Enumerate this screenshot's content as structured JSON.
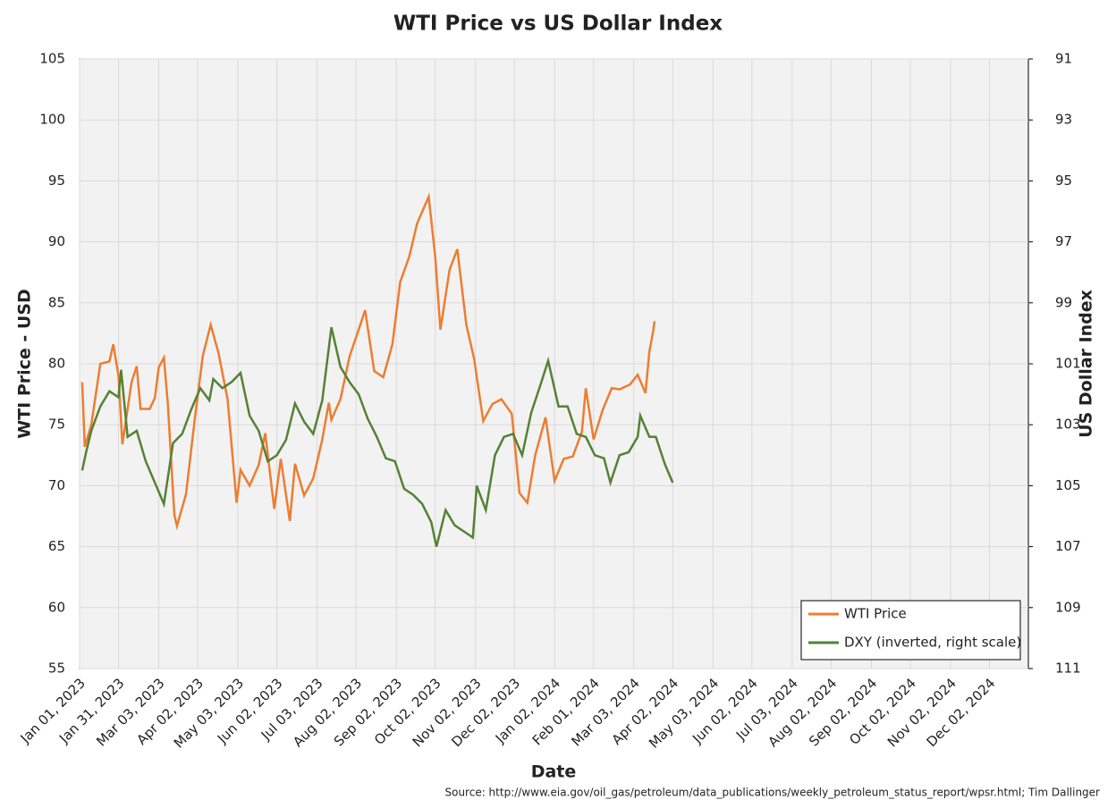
{
  "chart_data": {
    "type": "line",
    "title": "WTI Price vs US Dollar Index",
    "xlabel": "Date",
    "ylabel": "WTI Price - USD",
    "y2label": "US Dollar Index",
    "source": "Source: http://www.eia.gov/oil_gas/petroleum/data_publications/weekly_petroleum_status_report/wpsr.html; Tim Dallinger",
    "xlim": [
      "2023-01-01",
      "2025-01-01"
    ],
    "xticks": [
      {
        "value": "2023-01-01",
        "label": "Jan 01, 2023"
      },
      {
        "value": "2023-01-31",
        "label": "Jan 31, 2023"
      },
      {
        "value": "2023-03-03",
        "label": "Mar 03, 2023"
      },
      {
        "value": "2023-04-02",
        "label": "Apr 02, 2023"
      },
      {
        "value": "2023-05-03",
        "label": "May 03, 2023"
      },
      {
        "value": "2023-06-02",
        "label": "Jun 02, 2023"
      },
      {
        "value": "2023-07-03",
        "label": "Jul 03, 2023"
      },
      {
        "value": "2023-08-02",
        "label": "Aug 02, 2023"
      },
      {
        "value": "2023-09-02",
        "label": "Sep 02, 2023"
      },
      {
        "value": "2023-10-02",
        "label": "Oct 02, 2023"
      },
      {
        "value": "2023-11-02",
        "label": "Nov 02, 2023"
      },
      {
        "value": "2023-12-02",
        "label": "Dec 02, 2023"
      },
      {
        "value": "2024-01-02",
        "label": "Jan 02, 2024"
      },
      {
        "value": "2024-02-01",
        "label": "Feb 01, 2024"
      },
      {
        "value": "2024-03-03",
        "label": "Mar 03, 2024"
      },
      {
        "value": "2024-04-02",
        "label": "Apr 02, 2024"
      },
      {
        "value": "2024-05-03",
        "label": "May 03, 2024"
      },
      {
        "value": "2024-06-02",
        "label": "Jun 02, 2024"
      },
      {
        "value": "2024-07-03",
        "label": "Jul 03, 2024"
      },
      {
        "value": "2024-08-02",
        "label": "Aug 02, 2024"
      },
      {
        "value": "2024-09-02",
        "label": "Sep 02, 2024"
      },
      {
        "value": "2024-10-02",
        "label": "Oct 02, 2024"
      },
      {
        "value": "2024-11-02",
        "label": "Nov 02, 2024"
      },
      {
        "value": "2024-12-02",
        "label": "Dec 02, 2024"
      }
    ],
    "ylim": [
      55,
      105
    ],
    "yticks": [
      55,
      60,
      65,
      70,
      75,
      80,
      85,
      90,
      95,
      100,
      105
    ],
    "y2lim": [
      111,
      91
    ],
    "y2ticks": [
      91,
      93,
      95,
      97,
      99,
      101,
      103,
      105,
      107,
      109,
      111
    ],
    "grid": true,
    "legend": "lower right",
    "series": [
      {
        "name": "WTI Price",
        "color": "#ed7d31",
        "x": [
          "2023-01-03",
          "2023-01-05",
          "2023-01-10",
          "2023-01-17",
          "2023-01-24",
          "2023-01-27",
          "2023-01-31",
          "2023-02-03",
          "2023-02-10",
          "2023-02-14",
          "2023-02-17",
          "2023-02-24",
          "2023-02-28",
          "2023-03-03",
          "2023-03-07",
          "2023-03-10",
          "2023-03-15",
          "2023-03-17",
          "2023-03-24",
          "2023-03-31",
          "2023-04-06",
          "2023-04-12",
          "2023-04-18",
          "2023-04-25",
          "2023-05-02",
          "2023-05-05",
          "2023-05-12",
          "2023-05-19",
          "2023-05-24",
          "2023-05-31",
          "2023-06-05",
          "2023-06-12",
          "2023-06-16",
          "2023-06-23",
          "2023-06-30",
          "2023-07-07",
          "2023-07-12",
          "2023-07-14",
          "2023-07-21",
          "2023-07-28",
          "2023-08-04",
          "2023-08-09",
          "2023-08-16",
          "2023-08-23",
          "2023-08-30",
          "2023-09-05",
          "2023-09-12",
          "2023-09-18",
          "2023-09-27",
          "2023-10-02",
          "2023-10-06",
          "2023-10-13",
          "2023-10-19",
          "2023-10-26",
          "2023-11-01",
          "2023-11-08",
          "2023-11-15",
          "2023-11-22",
          "2023-11-30",
          "2023-12-06",
          "2023-12-12",
          "2023-12-18",
          "2023-12-26",
          "2024-01-02",
          "2024-01-09",
          "2024-01-16",
          "2024-01-23",
          "2024-01-26",
          "2024-02-01",
          "2024-02-08",
          "2024-02-15",
          "2024-02-21",
          "2024-02-29",
          "2024-03-06",
          "2024-03-12",
          "2024-03-15",
          "2024-03-18",
          "2024-03-19"
        ],
        "values": [
          78.5,
          73.2,
          75,
          80,
          80.2,
          81.6,
          79,
          73.4,
          78.5,
          79.8,
          76.3,
          76.3,
          77.2,
          79.7,
          80.5,
          76.7,
          67.6,
          66.7,
          69.3,
          75.7,
          80.7,
          83.2,
          80.9,
          77.1,
          68.6,
          71.3,
          70,
          71.7,
          74.3,
          68.1,
          72.2,
          67.1,
          71.8,
          69.2,
          70.6,
          73.8,
          76.8,
          75.4,
          77.1,
          80.6,
          82.8,
          84.4,
          79.4,
          78.9,
          81.6,
          86.7,
          88.8,
          91.5,
          93.7,
          88.8,
          82.8,
          87.7,
          89.4,
          83.2,
          80.4,
          75.3,
          76.7,
          77.1,
          75.9,
          69.4,
          68.6,
          72.5,
          75.6,
          70.4,
          72.2,
          72.4,
          74.4,
          78,
          73.8,
          76.2,
          78,
          77.9,
          78.3,
          79.1,
          77.6,
          81,
          82.7,
          83.5
        ]
      },
      {
        "name": "DXY (inverted, right scale)",
        "color": "#548235",
        "axis": "y2",
        "x": [
          "2023-01-03",
          "2023-01-06",
          "2023-01-10",
          "2023-01-17",
          "2023-01-24",
          "2023-01-31",
          "2023-02-02",
          "2023-02-07",
          "2023-02-14",
          "2023-02-21",
          "2023-02-28",
          "2023-03-07",
          "2023-03-14",
          "2023-03-21",
          "2023-03-28",
          "2023-04-04",
          "2023-04-11",
          "2023-04-14",
          "2023-04-21",
          "2023-04-28",
          "2023-05-05",
          "2023-05-12",
          "2023-05-19",
          "2023-05-26",
          "2023-06-02",
          "2023-06-09",
          "2023-06-16",
          "2023-06-23",
          "2023-06-30",
          "2023-07-07",
          "2023-07-14",
          "2023-07-21",
          "2023-07-28",
          "2023-08-04",
          "2023-08-11",
          "2023-08-18",
          "2023-08-25",
          "2023-09-01",
          "2023-09-08",
          "2023-09-15",
          "2023-09-22",
          "2023-09-29",
          "2023-10-03",
          "2023-10-10",
          "2023-10-17",
          "2023-10-24",
          "2023-10-31",
          "2023-11-03",
          "2023-11-10",
          "2023-11-17",
          "2023-11-24",
          "2023-12-01",
          "2023-12-08",
          "2023-12-15",
          "2023-12-22",
          "2023-12-28",
          "2024-01-05",
          "2024-01-12",
          "2024-01-19",
          "2024-01-26",
          "2024-02-02",
          "2024-02-09",
          "2024-02-14",
          "2024-02-21",
          "2024-02-28",
          "2024-03-06",
          "2024-03-08",
          "2024-03-15",
          "2024-03-20",
          "2024-03-27",
          "2024-04-02"
        ],
        "values": [
          104.5,
          103.9,
          103.2,
          102.4,
          101.9,
          102.1,
          101.2,
          103.4,
          103.2,
          104.2,
          104.9,
          105.6,
          103.6,
          103.3,
          102.5,
          101.8,
          102.2,
          101.5,
          101.8,
          101.6,
          101.3,
          102.7,
          103.2,
          104.2,
          104,
          103.5,
          102.3,
          102.9,
          103.3,
          102.2,
          99.8,
          101.1,
          101.6,
          102,
          102.8,
          103.4,
          104.1,
          104.2,
          105.1,
          105.3,
          105.6,
          106.2,
          107,
          105.8,
          106.3,
          106.5,
          106.7,
          105,
          105.8,
          104,
          103.4,
          103.3,
          104,
          102.6,
          101.7,
          100.9,
          102.4,
          102.4,
          103.3,
          103.4,
          104,
          104.1,
          104.9,
          104,
          103.9,
          103.4,
          102.7,
          103.4,
          103.4,
          104.3,
          104.9
        ]
      }
    ]
  }
}
